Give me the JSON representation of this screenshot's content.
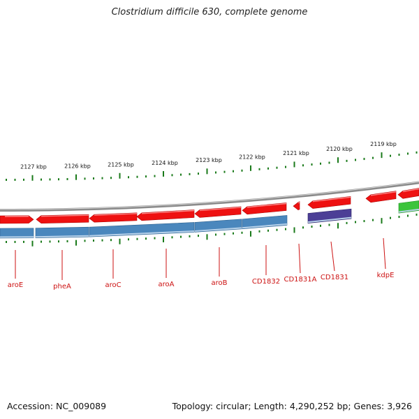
{
  "header": {
    "title": "Clostridium difficile 630, complete genome"
  },
  "footer": {
    "accession": "Accession: NC_009089",
    "stats": "Topology: circular; Length: 4,290,252 bp; Genes: 3,926"
  },
  "colors": {
    "backbone": "#8a8a8a",
    "forward_gene": "#ee1111",
    "cds_blue": "#4a87bd",
    "cds_purple": "#4c3f96",
    "cds_green": "#3cc43c",
    "tick": "#1a7a1a",
    "label_text": "#cc1111"
  },
  "scale": {
    "unit": "kbp",
    "ticks": [
      "2127 kbp",
      "2126 kbp",
      "2125 kbp",
      "2124 kbp",
      "2123 kbp",
      "2122 kbp",
      "2121 kbp",
      "2120 kbp",
      "2119 kbp"
    ]
  },
  "genes": [
    {
      "name": "aroE"
    },
    {
      "name": "pheA"
    },
    {
      "name": "aroC"
    },
    {
      "name": "aroA"
    },
    {
      "name": "aroB"
    },
    {
      "name": "CD1832"
    },
    {
      "name": "CD1831A"
    },
    {
      "name": "CD1831"
    },
    {
      "name": "kdpE"
    }
  ]
}
